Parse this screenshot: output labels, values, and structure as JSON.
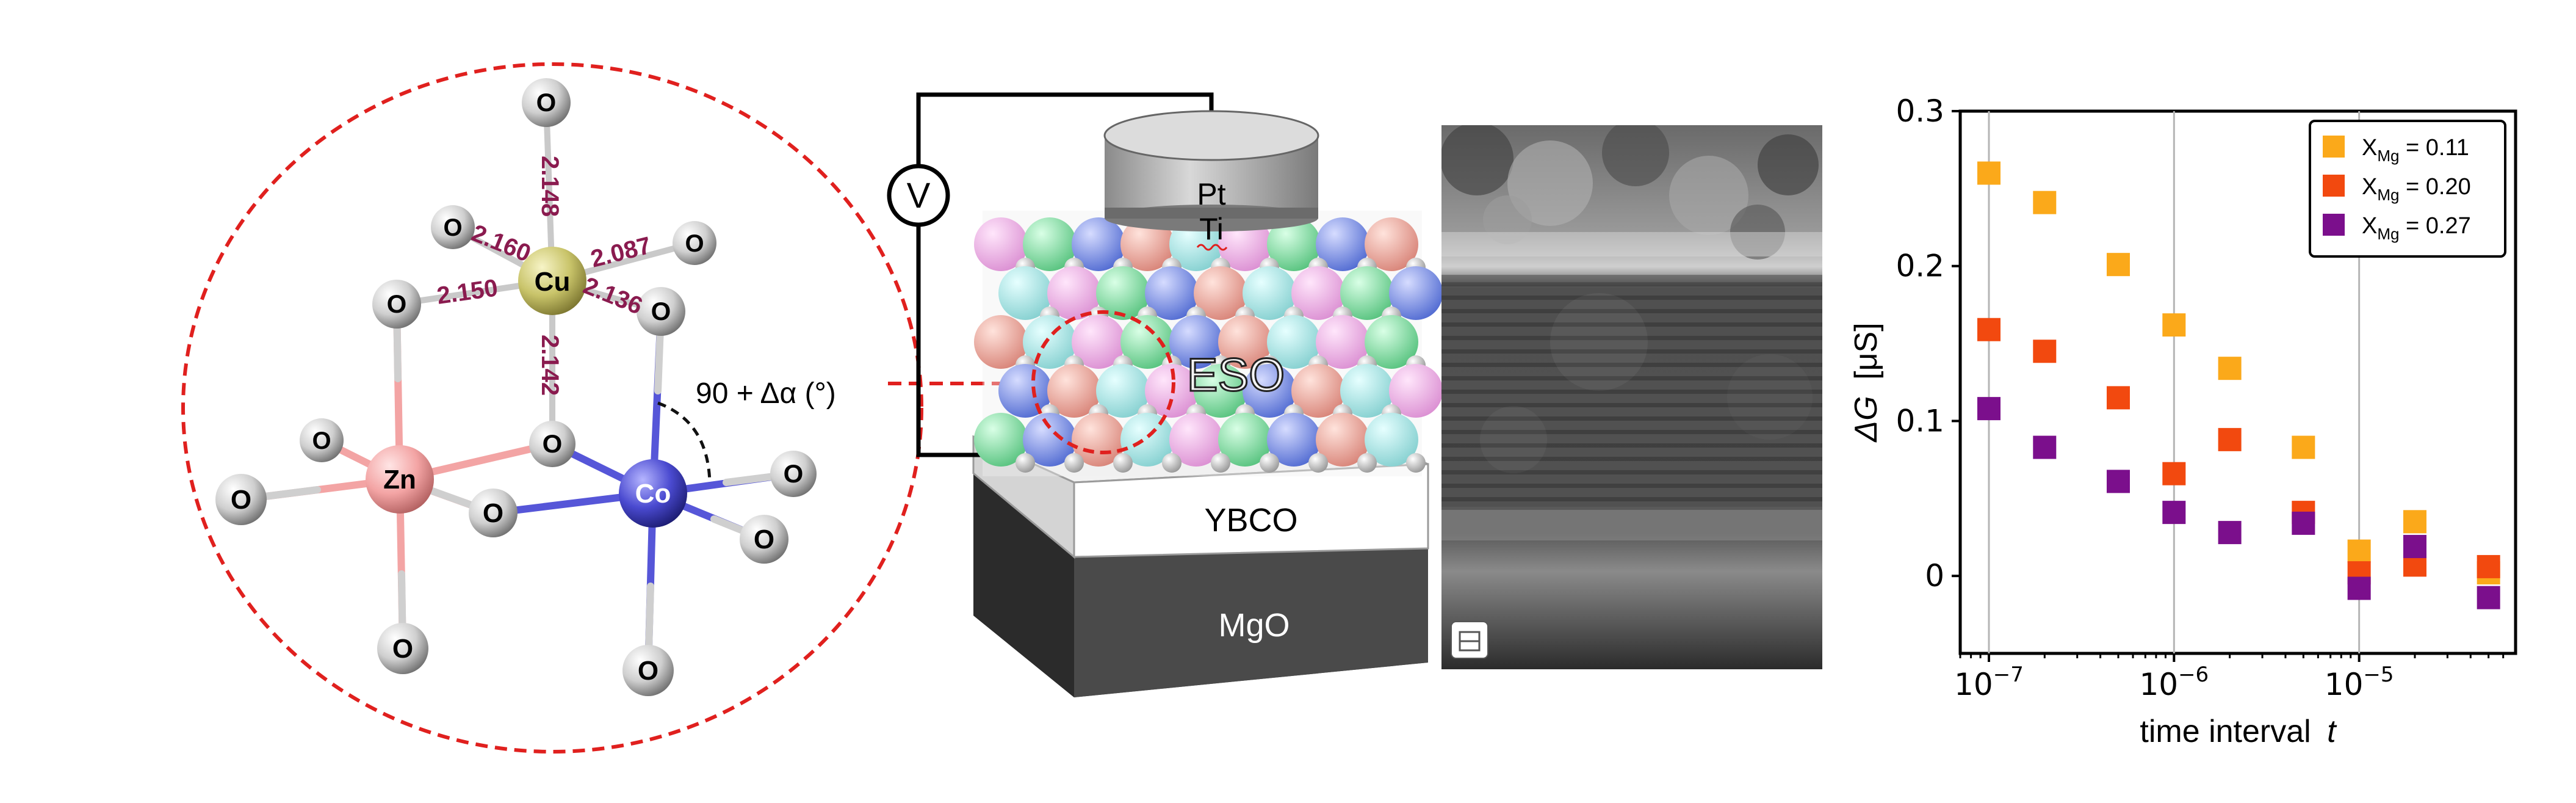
{
  "molecule": {
    "atoms": {
      "o": "O",
      "cu": "Cu",
      "zn": "Zn",
      "co": "Co"
    },
    "bonds": [
      "2.148",
      "2.160",
      "2.087",
      "2.150",
      "2.136",
      "2.142"
    ],
    "angle_label": "90 + Δα (°)"
  },
  "device": {
    "voltmeter": "V",
    "top_electrode": "Pt",
    "adhesion_layer": "Ti",
    "active_layer": "ESO",
    "bottom_electrode": "YBCO",
    "substrate": "MgO"
  },
  "colors": {
    "circle_dash": "#e0201e",
    "oxygen": "#bdbdbd",
    "copper": "#c9c46a",
    "zinc": "#f3a4a4",
    "cobalt": "#4a4ad0",
    "series_011": "#fba91a",
    "series_020": "#f2490f",
    "series_027": "#7b0f8c"
  },
  "chart_data": {
    "type": "scatter",
    "x_scale": "log",
    "xlabel_text": "time interval",
    "xlabel_var": "t",
    "ylabel_main": "ΔG",
    "ylabel_unit": "[μS]",
    "xlim": [
      7e-08,
      7e-05
    ],
    "ylim": [
      -0.05,
      0.3
    ],
    "y_ticks": [
      0,
      0.1,
      0.2,
      0.3
    ],
    "y_tick_labels": [
      "0",
      "0.1",
      "0.2",
      "0.3"
    ],
    "x_ticks": [
      1e-07,
      1e-06,
      1e-05
    ],
    "x_tick_exponents": [
      "−7",
      "−6",
      "−5"
    ],
    "x_tick_base": "10",
    "grid": "vertical lines at decades",
    "legend_position": "top-right",
    "x": [
      1e-07,
      2e-07,
      5e-07,
      1e-06,
      2e-06,
      5e-06,
      1e-05,
      2e-05,
      5e-05
    ],
    "series": [
      {
        "legend_prefix": "X",
        "legend_sub": "Mg",
        "legend_value": " = 0.11",
        "values": [
          0.26,
          0.241,
          0.201,
          0.162,
          0.134,
          0.083,
          0.016,
          0.035,
          0.002
        ]
      },
      {
        "legend_prefix": "X",
        "legend_sub": "Mg",
        "legend_value": " = 0.20",
        "values": [
          0.159,
          0.145,
          0.115,
          0.066,
          0.088,
          0.041,
          0.002,
          0.007,
          0.006
        ]
      },
      {
        "legend_prefix": "X",
        "legend_sub": "Mg",
        "legend_value": " = 0.27",
        "values": [
          0.108,
          0.083,
          0.061,
          0.041,
          0.028,
          0.034,
          -0.008,
          0.019,
          -0.014
        ]
      }
    ]
  }
}
